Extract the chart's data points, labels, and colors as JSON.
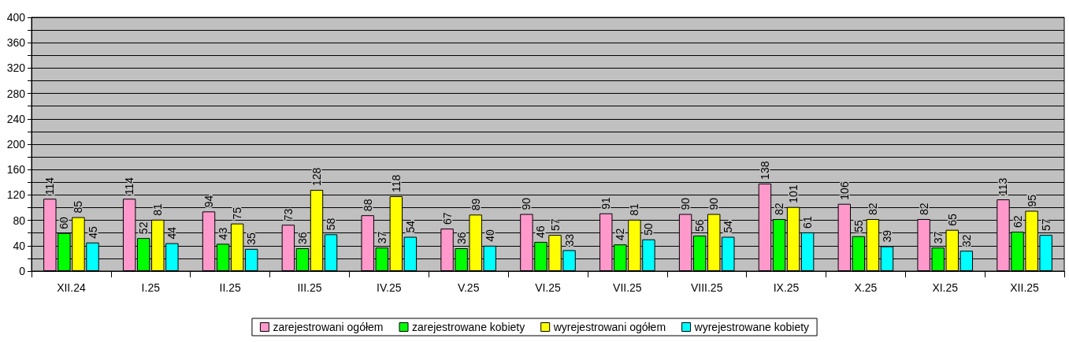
{
  "chart_data": {
    "type": "bar",
    "categories": [
      "XII.24",
      "I.25",
      "II.25",
      "III.25",
      "IV.25",
      "V.25",
      "VI.25",
      "VII.25",
      "VIII.25",
      "IX.25",
      "X.25",
      "XI.25",
      "XII.25"
    ],
    "series": [
      {
        "name": "zarejestrowani ogółem",
        "color": "#ff99cc",
        "values": [
          114,
          114,
          94,
          73,
          88,
          67,
          90,
          91,
          90,
          138,
          106,
          82,
          113
        ]
      },
      {
        "name": "zarejestrowane kobiety",
        "color": "#00ff00",
        "values": [
          60,
          52,
          43,
          36,
          37,
          36,
          46,
          42,
          56,
          82,
          55,
          37,
          62
        ]
      },
      {
        "name": "wyrejestrowani ogółem",
        "color": "#ffff00",
        "values": [
          85,
          81,
          75,
          128,
          118,
          89,
          57,
          81,
          90,
          101,
          82,
          65,
          95
        ]
      },
      {
        "name": "wyrejestrowane kobiety",
        "color": "#00ffff",
        "values": [
          45,
          44,
          35,
          58,
          54,
          40,
          33,
          50,
          54,
          61,
          39,
          32,
          57
        ]
      }
    ],
    "ylim": [
      0,
      400
    ],
    "yticks": [
      0,
      {
        "value": 20,
        "label": null
      },
      40,
      {
        "value": 60,
        "label": null
      },
      80,
      {
        "value": 100,
        "label": null
      },
      120,
      {
        "value": 140,
        "label": null
      },
      160,
      {
        "value": 180,
        "label": null
      },
      200,
      {
        "value": 220,
        "label": null
      },
      240,
      {
        "value": 260,
        "label": null
      },
      280,
      {
        "value": 300,
        "label": null
      },
      320,
      {
        "value": 340,
        "label": null
      },
      360,
      {
        "value": 380,
        "label": null
      },
      400
    ],
    "grid": "y",
    "legend": "bottom",
    "data_labels": true
  }
}
